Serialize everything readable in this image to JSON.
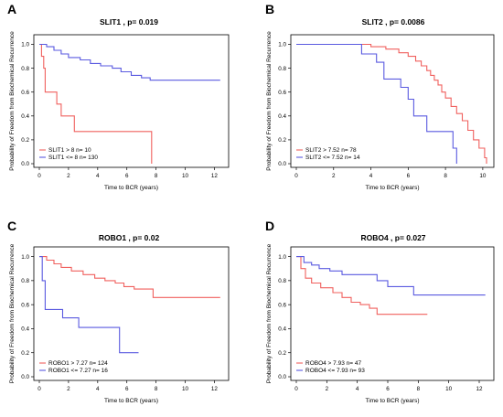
{
  "colors": {
    "red": "#f0605e",
    "blue": "#5a5ae0"
  },
  "chart_data": [
    {
      "type": "line",
      "panel": "A",
      "title": "SLIT1 , p= 0.019",
      "xlabel": "Time to BCR (years)",
      "ylabel": "Probability of Freedom from Biochemical Recurrence",
      "xlim": [
        0,
        12.6
      ],
      "ylim": [
        0,
        1.05
      ],
      "xticks": [
        0,
        2,
        4,
        6,
        8,
        10,
        12
      ],
      "yticks": [
        0.0,
        0.2,
        0.4,
        0.6,
        0.8,
        1.0
      ],
      "legend_position": "bottom-left",
      "series": [
        {
          "name": "SLIT1 > 8 n= 10",
          "color": "red",
          "points": [
            [
              0,
              1.0
            ],
            [
              0.15,
              0.9
            ],
            [
              0.3,
              0.8
            ],
            [
              0.4,
              0.6
            ],
            [
              1.1,
              0.6
            ],
            [
              1.2,
              0.5
            ],
            [
              1.5,
              0.4
            ],
            [
              2.3,
              0.4
            ],
            [
              2.4,
              0.27
            ],
            [
              7.7,
              0.27
            ],
            [
              7.7,
              0.0
            ]
          ]
        },
        {
          "name": "SLIT1 <= 8 n= 130",
          "color": "blue",
          "points": [
            [
              0,
              1.0
            ],
            [
              0.5,
              0.98
            ],
            [
              1.0,
              0.95
            ],
            [
              1.5,
              0.92
            ],
            [
              2.0,
              0.89
            ],
            [
              2.8,
              0.87
            ],
            [
              3.5,
              0.84
            ],
            [
              4.2,
              0.82
            ],
            [
              5.0,
              0.8
            ],
            [
              5.6,
              0.77
            ],
            [
              6.3,
              0.74
            ],
            [
              7.0,
              0.72
            ],
            [
              7.6,
              0.7
            ],
            [
              12.4,
              0.7
            ]
          ]
        }
      ]
    },
    {
      "type": "line",
      "panel": "B",
      "title": "SLIT2 , p= 0.0086",
      "xlabel": "Time to BCR (years)",
      "ylabel": "Probability of Freedom from Biochemical Recurrence",
      "xlim": [
        0,
        10.3
      ],
      "ylim": [
        0,
        1.05
      ],
      "xticks": [
        0,
        2,
        4,
        6,
        8,
        10
      ],
      "yticks": [
        0.0,
        0.2,
        0.4,
        0.6,
        0.8,
        1.0
      ],
      "legend_position": "bottom-left",
      "series": [
        {
          "name": "SLIT2 > 7.52 n= 78",
          "color": "red",
          "points": [
            [
              0,
              1.0
            ],
            [
              3.5,
              1.0
            ],
            [
              4.0,
              0.98
            ],
            [
              4.8,
              0.96
            ],
            [
              5.5,
              0.93
            ],
            [
              6.0,
              0.9
            ],
            [
              6.4,
              0.86
            ],
            [
              6.7,
              0.82
            ],
            [
              7.0,
              0.78
            ],
            [
              7.2,
              0.74
            ],
            [
              7.4,
              0.7
            ],
            [
              7.6,
              0.66
            ],
            [
              7.8,
              0.6
            ],
            [
              8.0,
              0.55
            ],
            [
              8.3,
              0.48
            ],
            [
              8.6,
              0.42
            ],
            [
              8.9,
              0.36
            ],
            [
              9.2,
              0.28
            ],
            [
              9.5,
              0.2
            ],
            [
              9.8,
              0.13
            ],
            [
              10.1,
              0.05
            ],
            [
              10.2,
              0.0
            ]
          ]
        },
        {
          "name": "SLIT2 <= 7.52 n= 14",
          "color": "blue",
          "points": [
            [
              0,
              1.0
            ],
            [
              3.2,
              1.0
            ],
            [
              3.5,
              0.92
            ],
            [
              4.3,
              0.85
            ],
            [
              4.7,
              0.71
            ],
            [
              5.6,
              0.64
            ],
            [
              6.0,
              0.54
            ],
            [
              6.3,
              0.4
            ],
            [
              7.0,
              0.27
            ],
            [
              8.2,
              0.27
            ],
            [
              8.4,
              0.13
            ],
            [
              8.6,
              0.0
            ]
          ]
        }
      ]
    },
    {
      "type": "line",
      "panel": "C",
      "title": "ROBO1 , p= 0.02",
      "xlabel": "Time to BCR (years)",
      "ylabel": "Probability of Freedom from Biochemical Recurrence",
      "xlim": [
        0,
        12.6
      ],
      "ylim": [
        0,
        1.05
      ],
      "xticks": [
        0,
        2,
        4,
        6,
        8,
        10,
        12
      ],
      "yticks": [
        0.0,
        0.2,
        0.4,
        0.6,
        0.8,
        1.0
      ],
      "legend_position": "bottom-left",
      "series": [
        {
          "name": "ROBO1 > 7.27 n= 124",
          "color": "red",
          "points": [
            [
              0,
              1.0
            ],
            [
              0.5,
              0.97
            ],
            [
              1.0,
              0.94
            ],
            [
              1.5,
              0.91
            ],
            [
              2.2,
              0.88
            ],
            [
              3.0,
              0.85
            ],
            [
              3.8,
              0.82
            ],
            [
              4.5,
              0.8
            ],
            [
              5.2,
              0.78
            ],
            [
              5.8,
              0.75
            ],
            [
              6.5,
              0.73
            ],
            [
              7.7,
              0.73
            ],
            [
              7.8,
              0.66
            ],
            [
              12.4,
              0.66
            ]
          ]
        },
        {
          "name": "ROBO1 <= 7.27 n= 16",
          "color": "blue",
          "points": [
            [
              0,
              1.0
            ],
            [
              0.2,
              0.8
            ],
            [
              0.4,
              0.56
            ],
            [
              1.5,
              0.56
            ],
            [
              1.6,
              0.49
            ],
            [
              2.6,
              0.49
            ],
            [
              2.7,
              0.41
            ],
            [
              5.4,
              0.41
            ],
            [
              5.5,
              0.2
            ],
            [
              6.8,
              0.2
            ]
          ]
        }
      ]
    },
    {
      "type": "line",
      "panel": "D",
      "title": "ROBO4 , p= 0.027",
      "xlabel": "Time to BCR (years)",
      "ylabel": "Probability of Freedom from Biochemical Recurrence",
      "xlim": [
        0,
        12.6
      ],
      "ylim": [
        0,
        1.05
      ],
      "xticks": [
        0,
        2,
        4,
        6,
        8,
        10,
        12
      ],
      "yticks": [
        0.0,
        0.2,
        0.4,
        0.6,
        0.8,
        1.0
      ],
      "legend_position": "bottom-left",
      "series": [
        {
          "name": "ROBO4 > 7.93 n= 47",
          "color": "red",
          "points": [
            [
              0,
              1.0
            ],
            [
              0.3,
              0.9
            ],
            [
              0.6,
              0.82
            ],
            [
              1.0,
              0.78
            ],
            [
              1.6,
              0.74
            ],
            [
              2.4,
              0.7
            ],
            [
              3.0,
              0.66
            ],
            [
              3.6,
              0.62
            ],
            [
              4.2,
              0.6
            ],
            [
              4.8,
              0.57
            ],
            [
              5.3,
              0.52
            ],
            [
              8.6,
              0.52
            ]
          ]
        },
        {
          "name": "ROBO4 <= 7.93 n= 93",
          "color": "blue",
          "points": [
            [
              0,
              1.0
            ],
            [
              0.5,
              0.95
            ],
            [
              1.0,
              0.93
            ],
            [
              1.5,
              0.9
            ],
            [
              2.2,
              0.88
            ],
            [
              3.0,
              0.85
            ],
            [
              5.0,
              0.85
            ],
            [
              5.3,
              0.8
            ],
            [
              6.0,
              0.75
            ],
            [
              7.5,
              0.75
            ],
            [
              7.7,
              0.68
            ],
            [
              12.4,
              0.68
            ]
          ]
        }
      ]
    }
  ]
}
